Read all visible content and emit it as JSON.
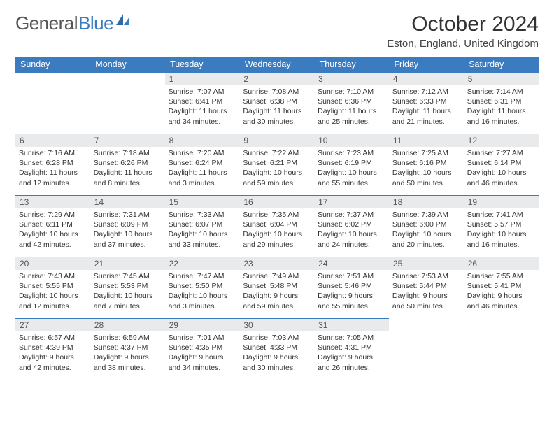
{
  "logo": {
    "text_gray": "General",
    "text_blue": "Blue"
  },
  "header": {
    "month_title": "October 2024",
    "location": "Eston, England, United Kingdom"
  },
  "weekdays": [
    "Sunday",
    "Monday",
    "Tuesday",
    "Wednesday",
    "Thursday",
    "Friday",
    "Saturday"
  ],
  "labels": {
    "sunrise": "Sunrise:",
    "sunset": "Sunset:",
    "daylight": "Daylight:"
  },
  "colors": {
    "header_bg": "#3b7bbf",
    "header_text": "#ffffff",
    "daynum_bg": "#e9eaec",
    "cell_border": "#3b7bbf",
    "body_text": "#333333"
  },
  "weeks": [
    [
      {
        "blank": true
      },
      {
        "blank": true
      },
      {
        "num": "1",
        "sunrise": "7:07 AM",
        "sunset": "6:41 PM",
        "daylight": "11 hours and 34 minutes."
      },
      {
        "num": "2",
        "sunrise": "7:08 AM",
        "sunset": "6:38 PM",
        "daylight": "11 hours and 30 minutes."
      },
      {
        "num": "3",
        "sunrise": "7:10 AM",
        "sunset": "6:36 PM",
        "daylight": "11 hours and 25 minutes."
      },
      {
        "num": "4",
        "sunrise": "7:12 AM",
        "sunset": "6:33 PM",
        "daylight": "11 hours and 21 minutes."
      },
      {
        "num": "5",
        "sunrise": "7:14 AM",
        "sunset": "6:31 PM",
        "daylight": "11 hours and 16 minutes."
      }
    ],
    [
      {
        "num": "6",
        "sunrise": "7:16 AM",
        "sunset": "6:28 PM",
        "daylight": "11 hours and 12 minutes."
      },
      {
        "num": "7",
        "sunrise": "7:18 AM",
        "sunset": "6:26 PM",
        "daylight": "11 hours and 8 minutes."
      },
      {
        "num": "8",
        "sunrise": "7:20 AM",
        "sunset": "6:24 PM",
        "daylight": "11 hours and 3 minutes."
      },
      {
        "num": "9",
        "sunrise": "7:22 AM",
        "sunset": "6:21 PM",
        "daylight": "10 hours and 59 minutes."
      },
      {
        "num": "10",
        "sunrise": "7:23 AM",
        "sunset": "6:19 PM",
        "daylight": "10 hours and 55 minutes."
      },
      {
        "num": "11",
        "sunrise": "7:25 AM",
        "sunset": "6:16 PM",
        "daylight": "10 hours and 50 minutes."
      },
      {
        "num": "12",
        "sunrise": "7:27 AM",
        "sunset": "6:14 PM",
        "daylight": "10 hours and 46 minutes."
      }
    ],
    [
      {
        "num": "13",
        "sunrise": "7:29 AM",
        "sunset": "6:11 PM",
        "daylight": "10 hours and 42 minutes."
      },
      {
        "num": "14",
        "sunrise": "7:31 AM",
        "sunset": "6:09 PM",
        "daylight": "10 hours and 37 minutes."
      },
      {
        "num": "15",
        "sunrise": "7:33 AM",
        "sunset": "6:07 PM",
        "daylight": "10 hours and 33 minutes."
      },
      {
        "num": "16",
        "sunrise": "7:35 AM",
        "sunset": "6:04 PM",
        "daylight": "10 hours and 29 minutes."
      },
      {
        "num": "17",
        "sunrise": "7:37 AM",
        "sunset": "6:02 PM",
        "daylight": "10 hours and 24 minutes."
      },
      {
        "num": "18",
        "sunrise": "7:39 AM",
        "sunset": "6:00 PM",
        "daylight": "10 hours and 20 minutes."
      },
      {
        "num": "19",
        "sunrise": "7:41 AM",
        "sunset": "5:57 PM",
        "daylight": "10 hours and 16 minutes."
      }
    ],
    [
      {
        "num": "20",
        "sunrise": "7:43 AM",
        "sunset": "5:55 PM",
        "daylight": "10 hours and 12 minutes."
      },
      {
        "num": "21",
        "sunrise": "7:45 AM",
        "sunset": "5:53 PM",
        "daylight": "10 hours and 7 minutes."
      },
      {
        "num": "22",
        "sunrise": "7:47 AM",
        "sunset": "5:50 PM",
        "daylight": "10 hours and 3 minutes."
      },
      {
        "num": "23",
        "sunrise": "7:49 AM",
        "sunset": "5:48 PM",
        "daylight": "9 hours and 59 minutes."
      },
      {
        "num": "24",
        "sunrise": "7:51 AM",
        "sunset": "5:46 PM",
        "daylight": "9 hours and 55 minutes."
      },
      {
        "num": "25",
        "sunrise": "7:53 AM",
        "sunset": "5:44 PM",
        "daylight": "9 hours and 50 minutes."
      },
      {
        "num": "26",
        "sunrise": "7:55 AM",
        "sunset": "5:41 PM",
        "daylight": "9 hours and 46 minutes."
      }
    ],
    [
      {
        "num": "27",
        "sunrise": "6:57 AM",
        "sunset": "4:39 PM",
        "daylight": "9 hours and 42 minutes."
      },
      {
        "num": "28",
        "sunrise": "6:59 AM",
        "sunset": "4:37 PM",
        "daylight": "9 hours and 38 minutes."
      },
      {
        "num": "29",
        "sunrise": "7:01 AM",
        "sunset": "4:35 PM",
        "daylight": "9 hours and 34 minutes."
      },
      {
        "num": "30",
        "sunrise": "7:03 AM",
        "sunset": "4:33 PM",
        "daylight": "9 hours and 30 minutes."
      },
      {
        "num": "31",
        "sunrise": "7:05 AM",
        "sunset": "4:31 PM",
        "daylight": "9 hours and 26 minutes."
      },
      {
        "blank": true
      },
      {
        "blank": true
      }
    ]
  ]
}
